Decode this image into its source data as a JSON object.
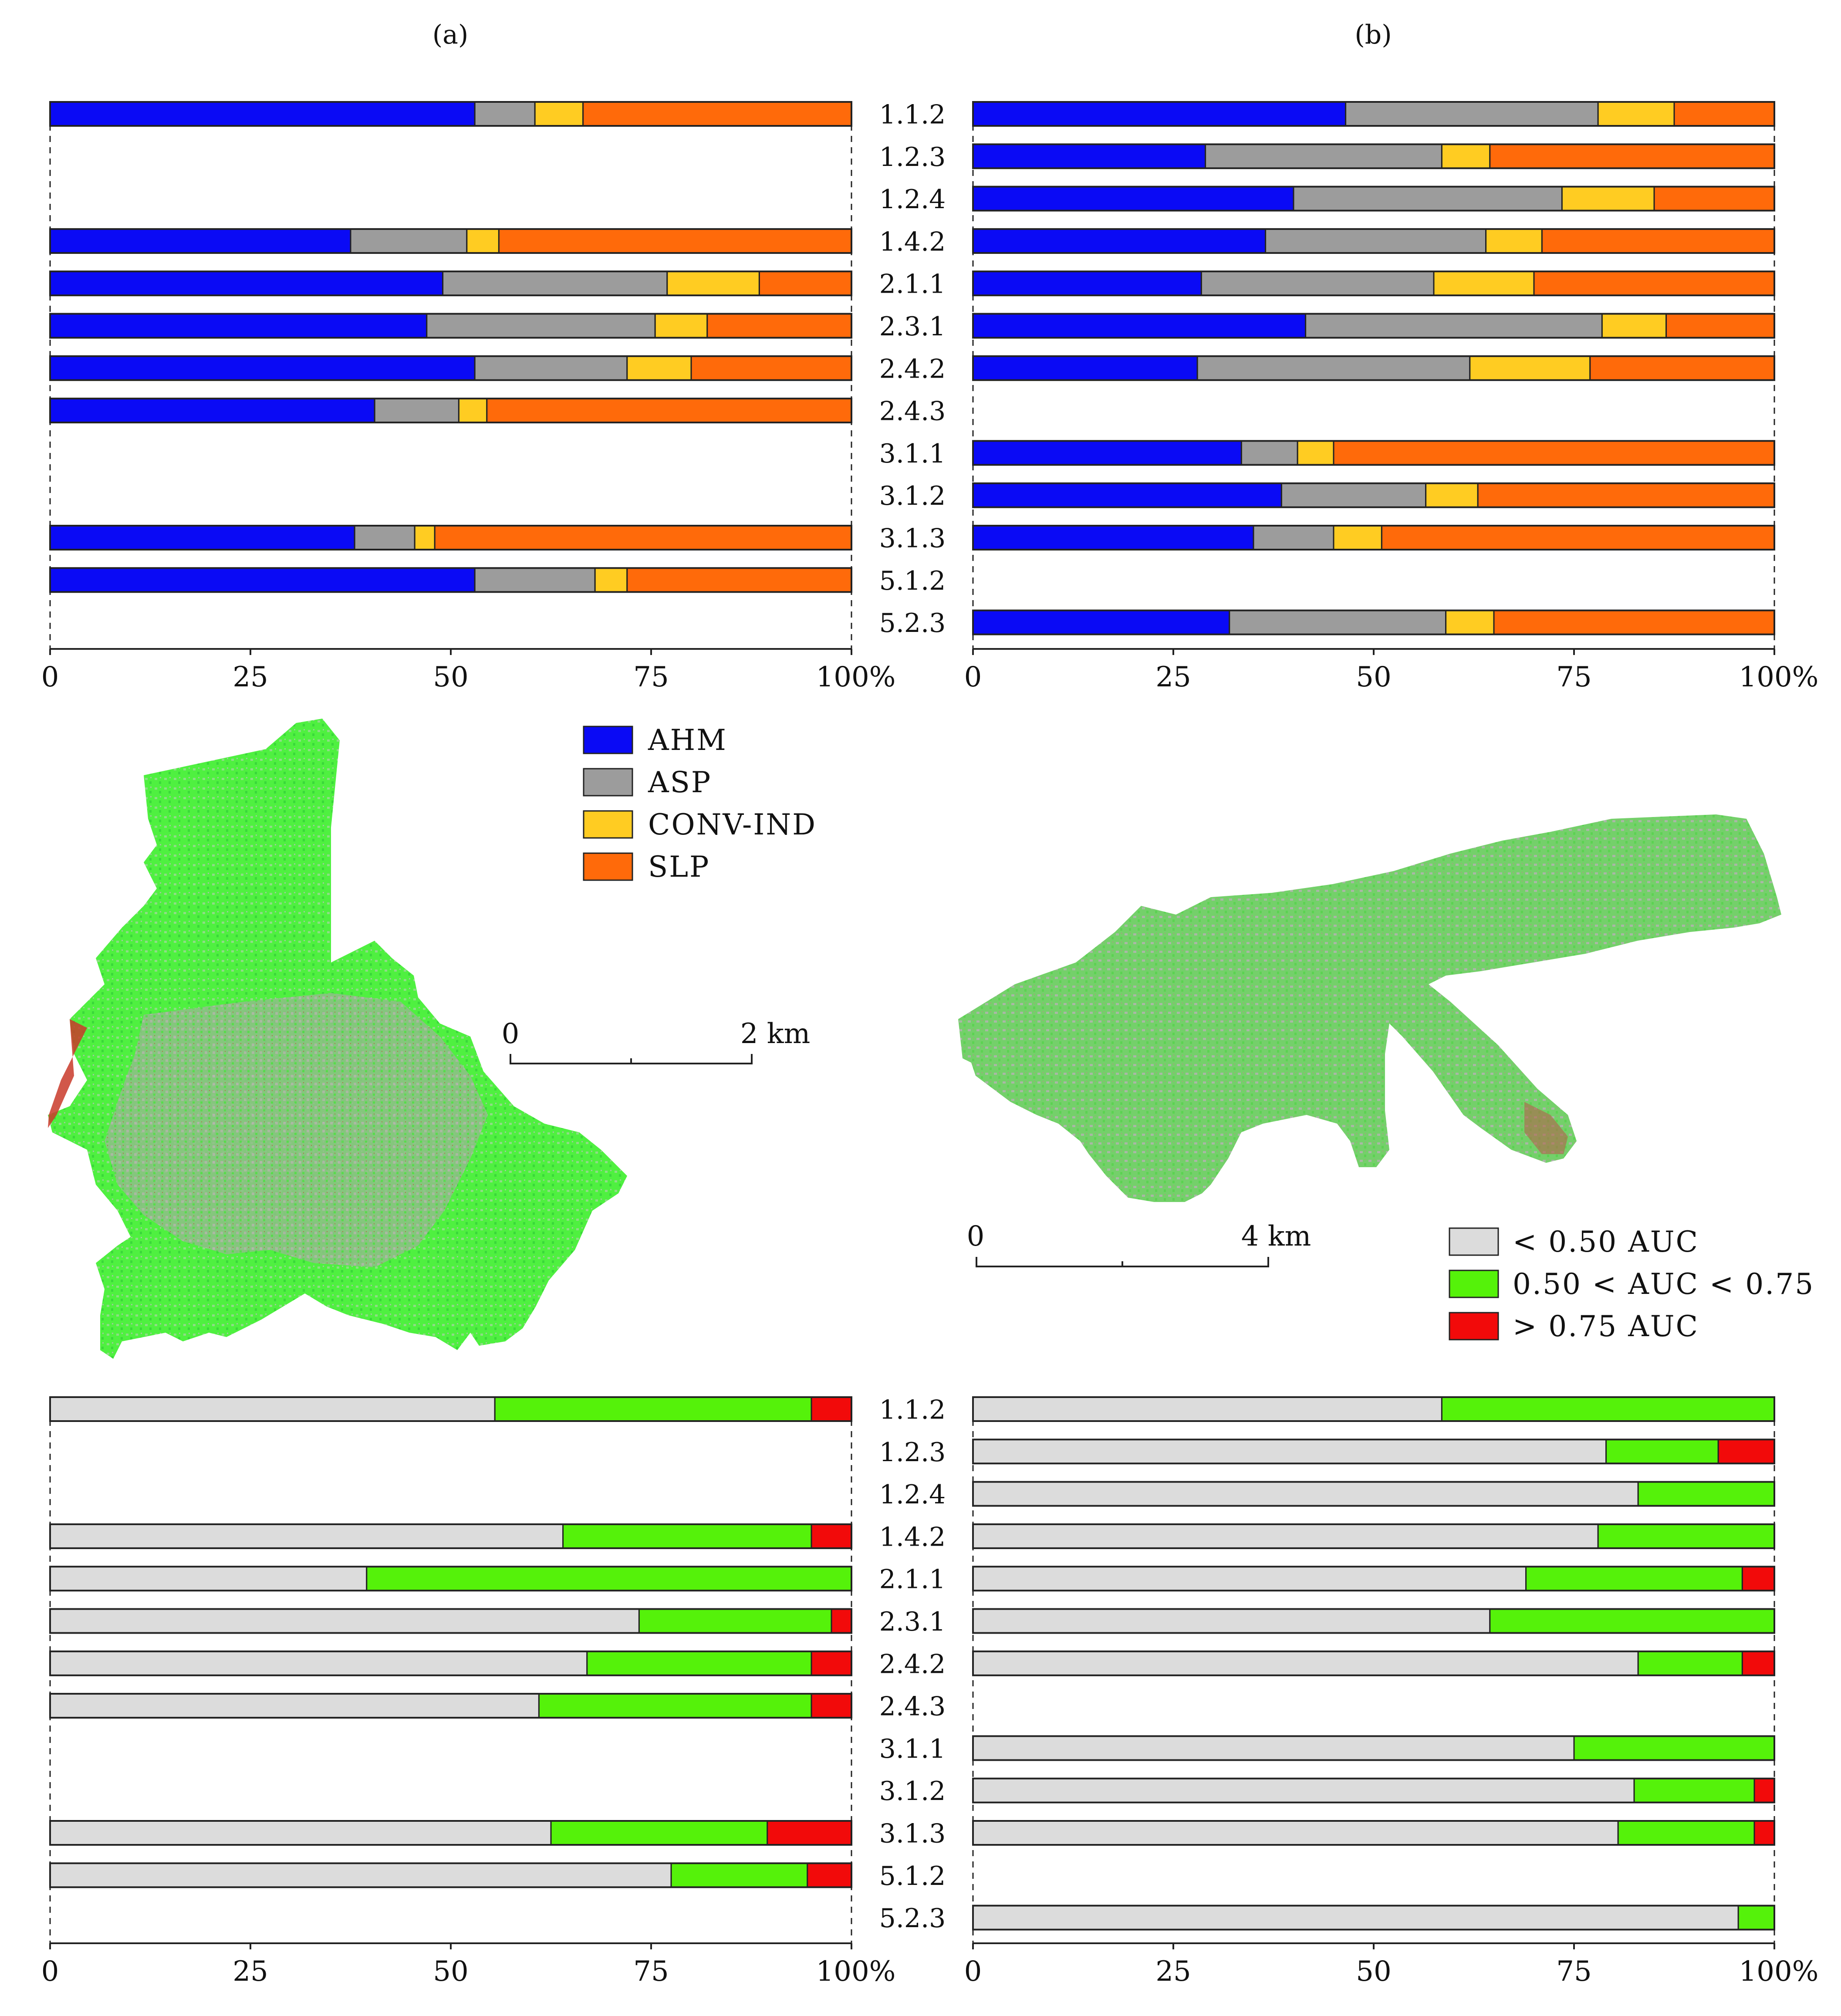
{
  "panel_titles": {
    "a": "(a)",
    "b": "(b)"
  },
  "palette": {
    "AHM": "#0a0af5",
    "ASP": "#9c9c9c",
    "CONV-IND": "#ffcc22",
    "SLP": "#ff6a0a",
    "lt050": "#dcdcdc",
    "mid": "#55f20a",
    "gt075": "#f20a0a"
  },
  "chart_data": [
    {
      "type": "bar",
      "orientation": "horizontal-stacked-percent",
      "panel": "a-top",
      "categories": [
        "1.1.2",
        "1.2.3",
        "1.2.4",
        "1.4.2",
        "2.1.1",
        "2.3.1",
        "2.4.2",
        "2.4.3",
        "3.1.1",
        "3.1.2",
        "3.1.3",
        "5.1.2",
        "5.2.3"
      ],
      "series": [
        {
          "name": "AHM",
          "values": [
            53,
            null,
            null,
            37.5,
            49,
            47,
            53,
            40.5,
            null,
            null,
            38,
            53,
            null
          ]
        },
        {
          "name": "ASP",
          "values": [
            7.5,
            null,
            null,
            14.5,
            28,
            28.5,
            19,
            10.5,
            null,
            null,
            7.5,
            15,
            null
          ]
        },
        {
          "name": "CONV-IND",
          "values": [
            6,
            null,
            null,
            4,
            11.5,
            6.5,
            8,
            3.5,
            null,
            null,
            2.5,
            4,
            null
          ]
        },
        {
          "name": "SLP",
          "values": [
            33.5,
            null,
            null,
            44,
            11.5,
            18,
            20,
            45.5,
            null,
            null,
            52,
            28,
            null
          ]
        }
      ],
      "xlim": [
        0,
        100
      ],
      "ticks": [
        "0",
        "25",
        "50",
        "75",
        "100%"
      ]
    },
    {
      "type": "bar",
      "orientation": "horizontal-stacked-percent",
      "panel": "b-top",
      "categories": [
        "1.1.2",
        "1.2.3",
        "1.2.4",
        "1.4.2",
        "2.1.1",
        "2.3.1",
        "2.4.2",
        "2.4.3",
        "3.1.1",
        "3.1.2",
        "3.1.3",
        "5.1.2",
        "5.2.3"
      ],
      "series": [
        {
          "name": "AHM",
          "values": [
            46.5,
            29,
            40,
            36.5,
            28.5,
            41.5,
            28,
            null,
            33.5,
            38.5,
            35,
            null,
            32
          ]
        },
        {
          "name": "ASP",
          "values": [
            31.5,
            29.5,
            33.5,
            27.5,
            29,
            37,
            34,
            null,
            7,
            18,
            10,
            null,
            27
          ]
        },
        {
          "name": "CONV-IND",
          "values": [
            9.5,
            6,
            11.5,
            7,
            12.5,
            8,
            15,
            null,
            4.5,
            6.5,
            6,
            null,
            6
          ]
        },
        {
          "name": "SLP",
          "values": [
            12.5,
            35.5,
            15,
            29,
            30,
            13.5,
            23,
            null,
            55,
            37,
            49,
            null,
            35
          ]
        }
      ],
      "xlim": [
        0,
        100
      ],
      "ticks": [
        "0",
        "25",
        "50",
        "75",
        "100%"
      ]
    },
    {
      "type": "bar",
      "orientation": "horizontal-stacked-percent",
      "panel": "a-bottom",
      "categories": [
        "1.1.2",
        "1.2.3",
        "1.2.4",
        "1.4.2",
        "2.1.1",
        "2.3.1",
        "2.4.2",
        "2.4.3",
        "3.1.1",
        "3.1.2",
        "3.1.3",
        "5.1.2",
        "5.2.3"
      ],
      "series": [
        {
          "name": "< 0.50 AUC",
          "values": [
            55.5,
            null,
            null,
            64,
            39.5,
            73.5,
            67,
            61,
            null,
            null,
            62.5,
            77.5,
            null
          ]
        },
        {
          "name": "0.50 < AUC < 0.75",
          "values": [
            39.5,
            null,
            null,
            31,
            60.5,
            24,
            28,
            34,
            null,
            null,
            27,
            17,
            null
          ]
        },
        {
          "name": "> 0.75 AUC",
          "values": [
            5,
            null,
            null,
            5,
            0,
            2.5,
            5,
            5,
            null,
            null,
            10.5,
            5.5,
            null
          ]
        }
      ],
      "xlim": [
        0,
        100
      ],
      "ticks": [
        "0",
        "25",
        "50",
        "75",
        "100%"
      ]
    },
    {
      "type": "bar",
      "orientation": "horizontal-stacked-percent",
      "panel": "b-bottom",
      "categories": [
        "1.1.2",
        "1.2.3",
        "1.2.4",
        "1.4.2",
        "2.1.1",
        "2.3.1",
        "2.4.2",
        "2.4.3",
        "3.1.1",
        "3.1.2",
        "3.1.3",
        "5.1.2",
        "5.2.3"
      ],
      "series": [
        {
          "name": "< 0.50 AUC",
          "values": [
            58.5,
            79,
            83,
            78,
            69,
            64.5,
            83,
            null,
            75,
            82.5,
            80.5,
            null,
            95.5
          ]
        },
        {
          "name": "0.50 < AUC < 0.75",
          "values": [
            41.5,
            14,
            17,
            22,
            27,
            35.5,
            13,
            null,
            25,
            15,
            17,
            null,
            4.5
          ]
        },
        {
          "name": "> 0.75 AUC",
          "values": [
            0,
            7,
            0,
            0,
            4,
            0,
            4,
            null,
            0,
            2.5,
            2.5,
            null,
            0
          ]
        }
      ],
      "xlim": [
        0,
        100
      ],
      "ticks": [
        "0",
        "25",
        "50",
        "75",
        "100%"
      ]
    }
  ],
  "legend_top": [
    {
      "label": "AHM",
      "color_key": "AHM"
    },
    {
      "label": "ASP",
      "color_key": "ASP"
    },
    {
      "label": "CONV-IND",
      "color_key": "CONV-IND"
    },
    {
      "label": "SLP",
      "color_key": "SLP"
    }
  ],
  "legend_bottom": [
    {
      "label": "< 0.50 AUC",
      "color_key": "lt050"
    },
    {
      "label": "0.50 < AUC < 0.75",
      "color_key": "mid"
    },
    {
      "label": "> 0.75 AUC",
      "color_key": "gt075"
    }
  ],
  "scale_a": {
    "start": "0",
    "end": "2 km"
  },
  "scale_b": {
    "start": "0",
    "end": "4 km"
  }
}
